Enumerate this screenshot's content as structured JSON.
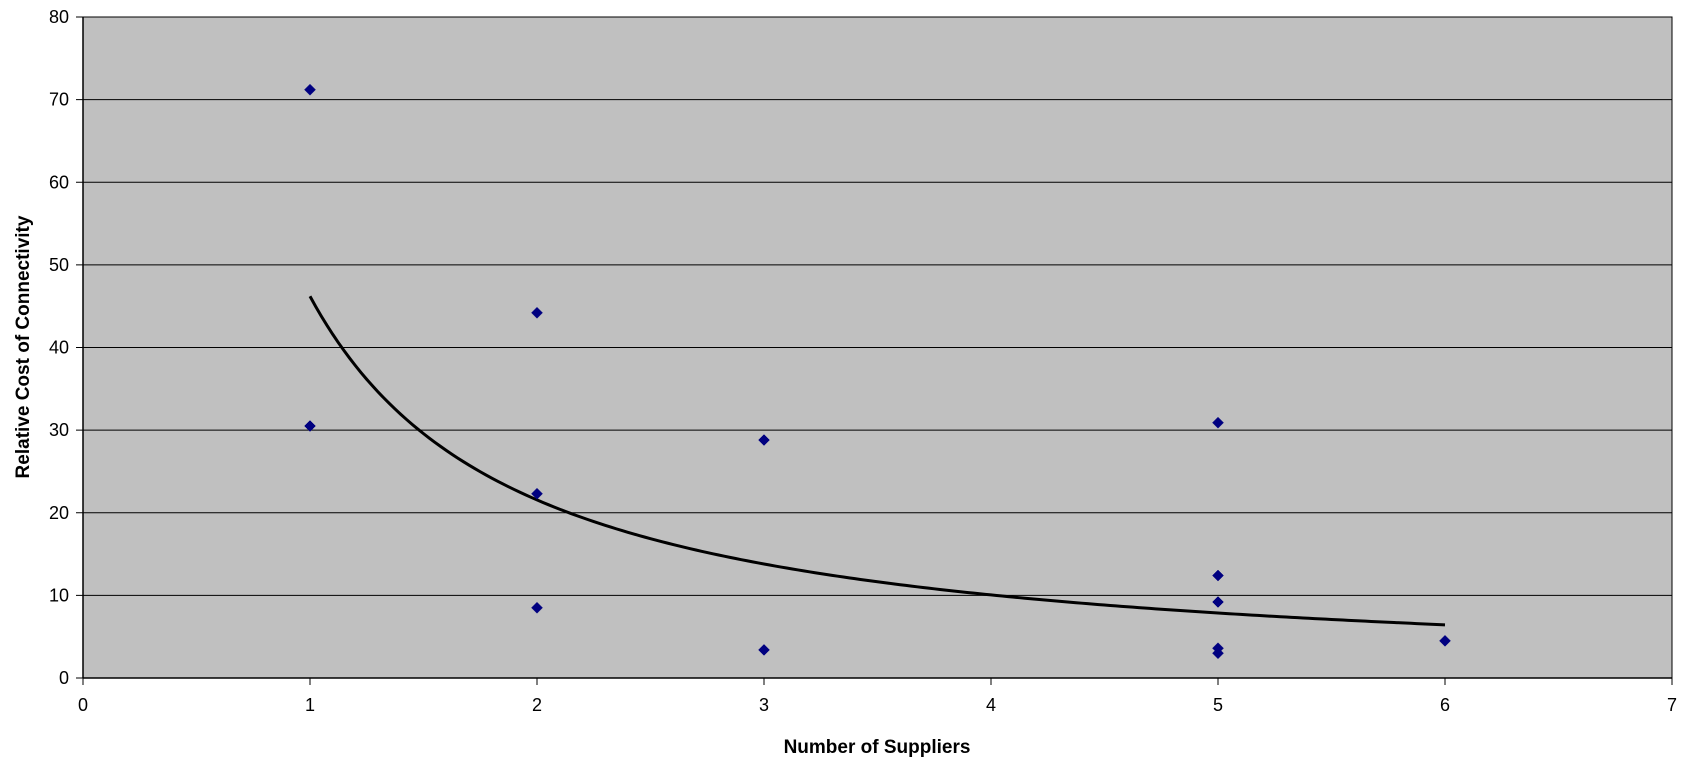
{
  "chart_data": {
    "type": "scatter",
    "xlabel": "Number of Suppliers",
    "ylabel": "Relative Cost of Connectivity",
    "xlim": [
      0,
      7
    ],
    "ylim": [
      0,
      80
    ],
    "xticks": [
      "0",
      "1",
      "2",
      "3",
      "4",
      "5",
      "6",
      "7"
    ],
    "yticks": [
      "0",
      "10",
      "20",
      "30",
      "40",
      "50",
      "60",
      "70",
      "80"
    ],
    "grid": "horizontal",
    "plot_background": "#c0c0c0",
    "marker": "diamond",
    "marker_color": "#000080",
    "trendline": {
      "type": "power",
      "color": "#000000",
      "x_range": [
        1,
        6
      ],
      "coefficient": 46.2,
      "exponent": -1.1
    },
    "series": [
      {
        "points": [
          {
            "x": 1,
            "y": 71.2
          },
          {
            "x": 1,
            "y": 30.5
          },
          {
            "x": 2,
            "y": 44.2
          },
          {
            "x": 2,
            "y": 22.3
          },
          {
            "x": 2,
            "y": 8.5
          },
          {
            "x": 3,
            "y": 28.8
          },
          {
            "x": 3,
            "y": 3.4
          },
          {
            "x": 5,
            "y": 30.9
          },
          {
            "x": 5,
            "y": 12.4
          },
          {
            "x": 5,
            "y": 9.2
          },
          {
            "x": 5,
            "y": 3.6
          },
          {
            "x": 5,
            "y": 3.0
          },
          {
            "x": 6,
            "y": 4.5
          }
        ]
      }
    ]
  }
}
